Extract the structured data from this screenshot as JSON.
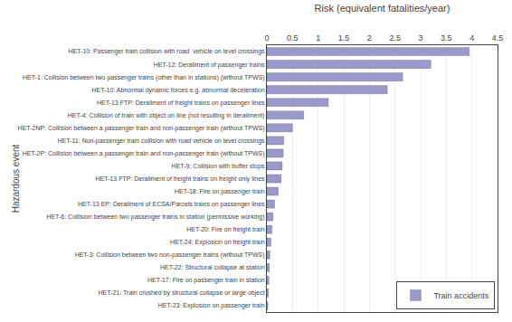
{
  "chart_data": {
    "type": "bar",
    "orientation": "horizontal",
    "xlabel": "Risk (equivalent fatalities/year)",
    "ylabel": "Hazardous event",
    "categories": [
      "HET-23: Explosion on passenger train",
      "HET-21: Train crushed by structural collapse or large object",
      "HET-17: Fire on passenger train in station",
      "HET-22: Structural collapse at station",
      "HET-3: Collision between two non-passenger trains (without TPWS)",
      "HET-24: Explosion on freight train",
      "HET-20: Fire on freight train",
      "HET-6: Collision between two passenger trains in station (permissive working)",
      "HET-13 EP: Derailment of ECSA/Parcels trains on passenger lines",
      "HET-18: Fire on passenger train",
      "HET-13 FTP: Derailment of freight trains on freight only lines",
      "HET-9: Collision with buffer stops",
      "HET-2P: Collision between a passenger train and non-passenger train (without TPWS)",
      "HET-11: Non-passenger train collision with road vehicle on level crossings",
      "HET-2NP: Collision between a passenger train and non-passenger train (without TPWS)",
      "HET-4: Collision of train with object on line (not resulting in derailment)",
      "HET-13 FTP: Derailment of freight trains on passenger lines",
      "HET-10: Abnormal dynamic forces e.g. abnormal deceleration",
      "HET-1: Collision between two passenger trains (other than in stations) (without TPWS)",
      "HET-12: Derailment of passenger trains",
      "HET-10: Passenger train collision with road  vehicle on level crossings"
    ],
    "series": [
      {
        "name": "Train accidents",
        "color": "#9999cc",
        "values": [
          0.02,
          0.03,
          0.04,
          0.05,
          0.06,
          0.08,
          0.1,
          0.12,
          0.15,
          0.22,
          0.28,
          0.3,
          0.32,
          0.33,
          0.5,
          0.72,
          1.2,
          2.35,
          2.65,
          3.2,
          3.95
        ]
      }
    ],
    "xlim": [
      0,
      4.5
    ],
    "xticks": [
      0,
      0.5,
      1,
      1.5,
      2,
      2.5,
      3,
      3.5,
      4,
      4.5
    ],
    "grid": true,
    "legend": "lower right"
  }
}
